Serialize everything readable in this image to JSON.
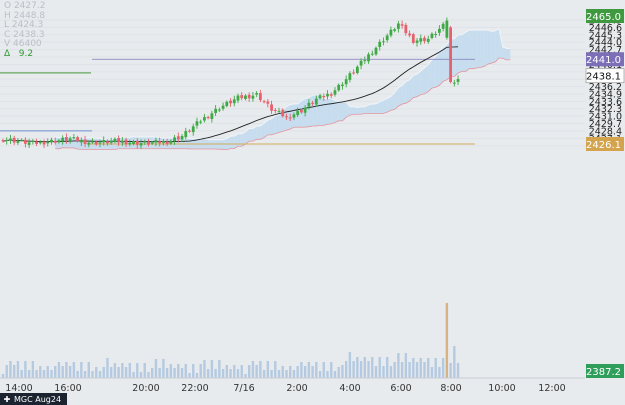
{
  "ohlc": {
    "open": "O 2427.2",
    "high": "H 2448.8",
    "low": "L 2424.3",
    "close": "C 2438.3",
    "volume": "V 46400",
    "change_label": "Δ",
    "change_value": "9.2"
  },
  "symbol_tab": "MGC Aug24",
  "colors": {
    "up": "#3faa45",
    "down": "#e8606b",
    "cloud_bull": "#c3dbee",
    "cloud_bear": "#f2c2c6",
    "ma_line": "#222222",
    "volume": "#a8c2dd",
    "volume_last": "#d3a96f",
    "level_blue": "#7f79b8",
    "level_gold": "#d2ac58",
    "level_green": "#66a85c"
  },
  "chart_data": {
    "type": "candlestick",
    "y_range": [
      2386.2,
      2448.6
    ],
    "x_tick_labels": [
      "14:00",
      "16:00",
      "20:00",
      "22:00",
      "7/16",
      "2:00",
      "4:00",
      "6:00",
      "8:00",
      "10:00",
      "12:00"
    ],
    "y_tick_labels": [
      "2447.9",
      "2446.6",
      "2445.3",
      "2444.0",
      "2442.7",
      "2441.4",
      "2440.1",
      "2438.8",
      "2437.5",
      "2436.2",
      "2434.9",
      "2433.6",
      "2432.3",
      "2431.0",
      "2429.7",
      "2428.4",
      "2427.1",
      "2425.8"
    ],
    "price_tags": [
      {
        "label": "2465.0",
        "value": 2448.6,
        "kind": "high"
      },
      {
        "label": "2441.0",
        "value": 2441.0,
        "kind": "level"
      },
      {
        "label": "2438.1",
        "value": 2438.1,
        "kind": "last"
      },
      {
        "label": "2426.1",
        "value": 2426.1,
        "kind": "entry"
      },
      {
        "label": "2387.2",
        "value": 2424.3,
        "kind": "low"
      }
    ],
    "levels": [
      {
        "name": "blue-level",
        "value": 2441.0
      },
      {
        "name": "gold-level",
        "value": 2426.1
      },
      {
        "name": "green-level",
        "value": 2438.6
      },
      {
        "name": "blue-band-level",
        "value": 2428.4
      }
    ],
    "closes_sample": [
      2427.0,
      2426.5,
      2426.8,
      2426.2,
      2426.0,
      2429.5,
      2432.5,
      2434.0,
      2434.8,
      2432.5,
      2431.0,
      2431.5,
      2432.0,
      2433.5,
      2434.5,
      2437.0,
      2440.5,
      2443.0,
      2446.5,
      2444.5,
      2444.0,
      2445.0,
      2436.8,
      2437.5
    ]
  }
}
